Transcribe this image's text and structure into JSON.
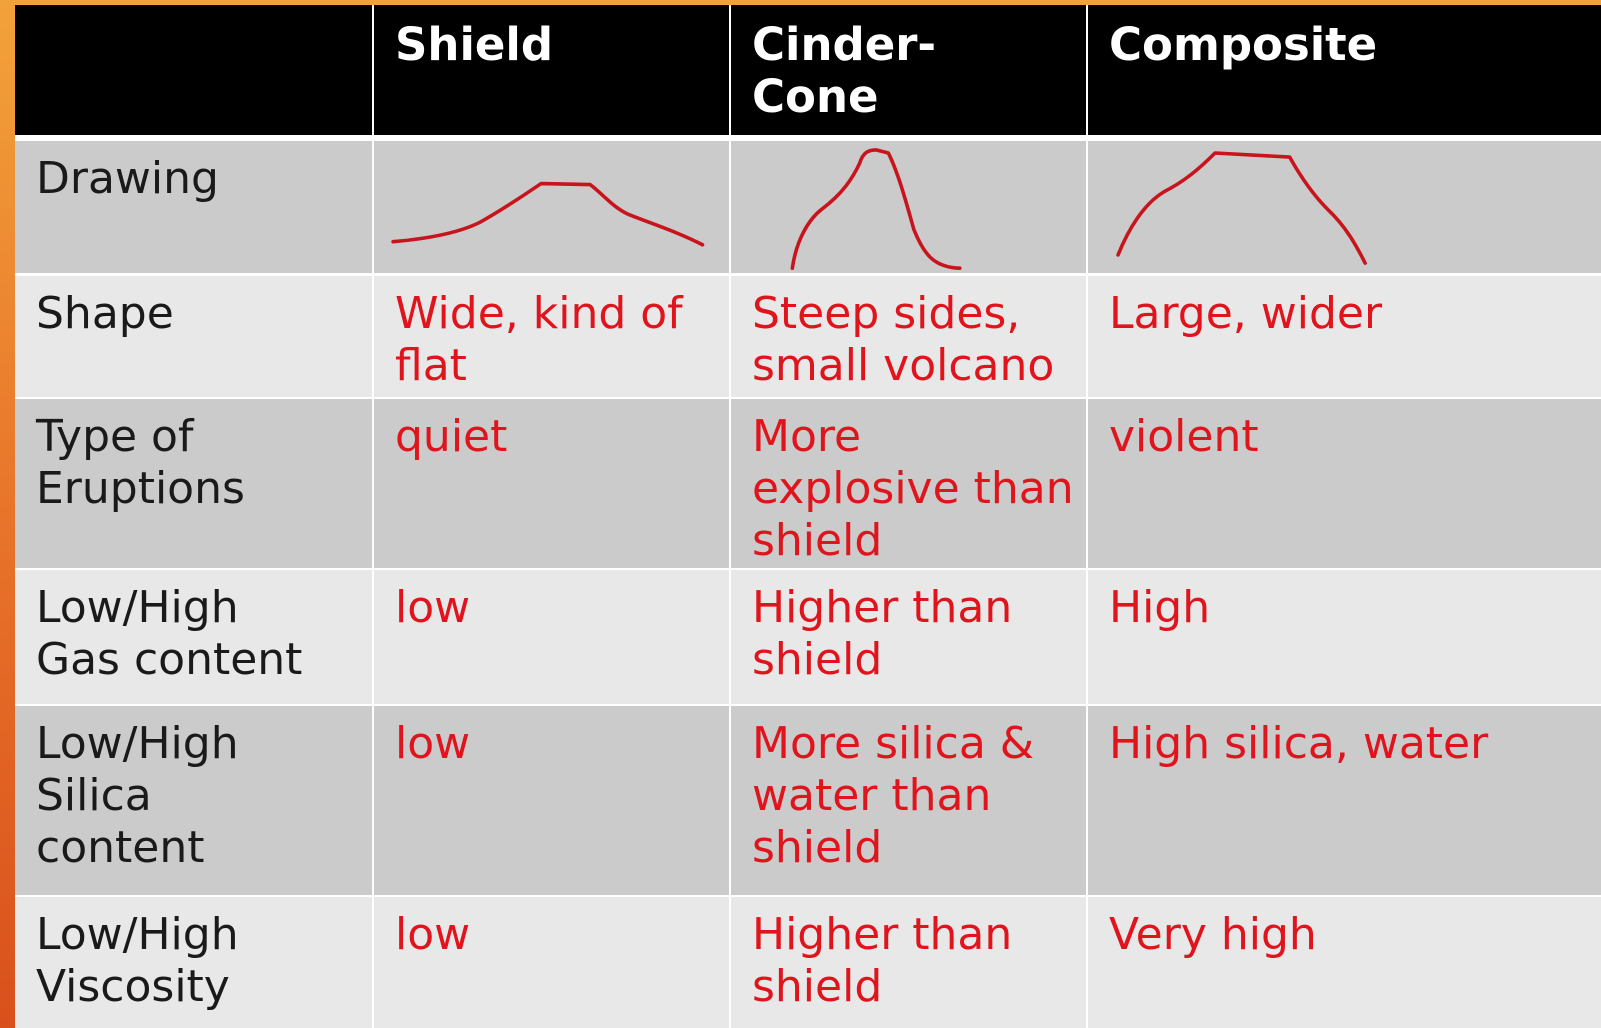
{
  "table": {
    "header": [
      [
        "Shield"
      ],
      [
        "Cinder-",
        "Cone"
      ],
      [
        "Composite"
      ]
    ],
    "rows": [
      {
        "label": [
          "Drawing"
        ]
      },
      {
        "label": [
          "Shape"
        ],
        "cells": [
          [
            "Wide, kind of",
            "flat"
          ],
          [
            "Steep sides,",
            "small volcano"
          ],
          [
            "Large, wider"
          ]
        ]
      },
      {
        "label": [
          "Type of",
          "Eruptions"
        ],
        "cells": [
          [
            "quiet"
          ],
          [
            "More",
            "explosive than",
            "shield"
          ],
          [
            "violent"
          ]
        ]
      },
      {
        "label": [
          "Low/High",
          "Gas content"
        ],
        "cells": [
          [
            "low"
          ],
          [
            "Higher than",
            "shield"
          ],
          [
            "High"
          ]
        ]
      },
      {
        "label": [
          "Low/High",
          "Silica",
          "content"
        ],
        "cells": [
          [
            "low"
          ],
          [
            "More silica &",
            "water than",
            "shield"
          ],
          [
            "High silica, water"
          ]
        ]
      },
      {
        "label": [
          "Low/High",
          "Viscosity"
        ],
        "cells": [
          [
            "low"
          ],
          [
            "Higher than",
            "shield"
          ],
          [
            "Very high"
          ]
        ]
      }
    ]
  }
}
